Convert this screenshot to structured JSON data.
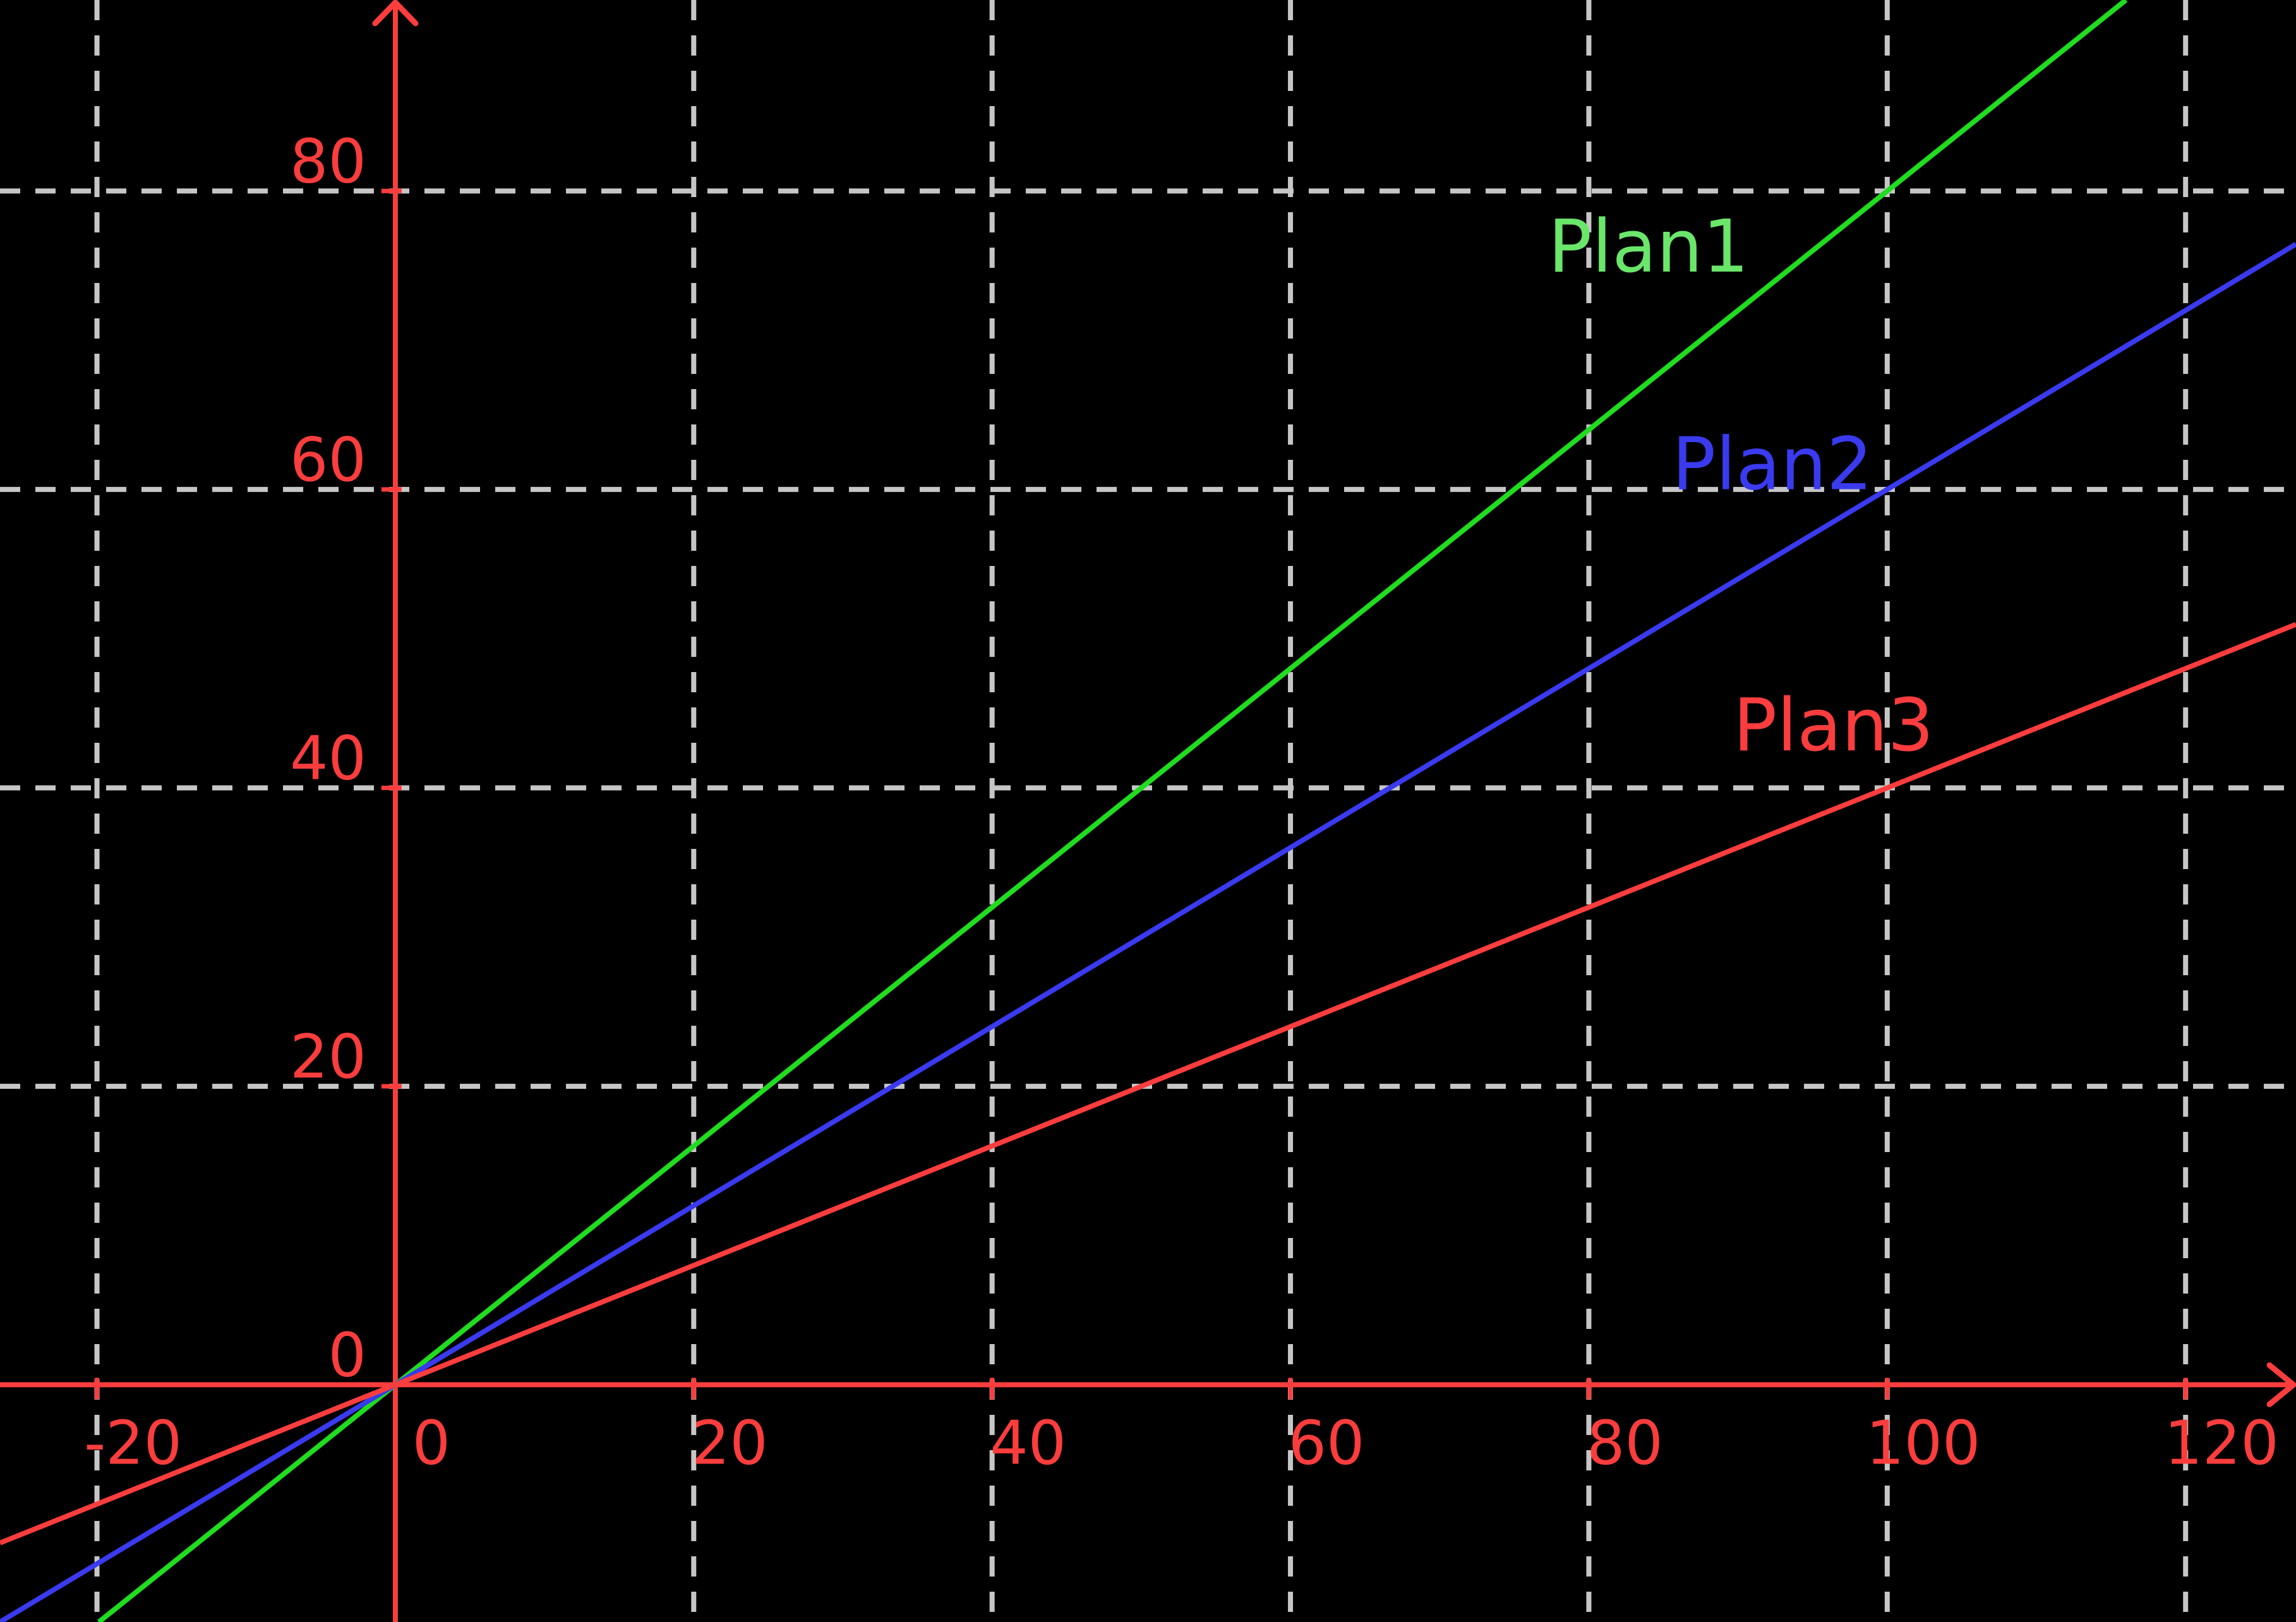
{
  "figure": {
    "description": "Black-background coordinate plane with red arrowed axes, dashed gray gridlines, and three proportional lines through the origin labeled Plan1, Plan2, Plan3"
  },
  "colors": {
    "background": "#000000",
    "axis_red": "#fb3d3d",
    "grid_gray": "#c6c6c6",
    "plan1_line": "#1fdd1f",
    "plan1_label": "#6ae66a",
    "plan2_line": "#3a3aef",
    "plan2_label": "#3a3aef",
    "plan3_line": "#fb3d3d",
    "plan3_label": "#fb3d3d"
  },
  "chart_data": {
    "type": "line",
    "title": "",
    "xlabel": "",
    "ylabel": "",
    "x_range": [
      -26.5,
      127.4
    ],
    "y_range": [
      -15.9,
      92.8
    ],
    "x_ticks": [
      -20,
      0,
      20,
      40,
      60,
      80,
      100,
      120
    ],
    "y_ticks": [
      0,
      20,
      40,
      60,
      80
    ],
    "x_tick_labels": [
      "-20",
      "0",
      "20",
      "40",
      "60",
      "80",
      "100",
      "120"
    ],
    "y_tick_labels": [
      "0",
      "20",
      "40",
      "60",
      "80"
    ],
    "grid_x": [
      -20,
      20,
      40,
      60,
      80,
      100,
      120
    ],
    "grid_y": [
      20,
      40,
      60,
      80
    ],
    "grid_on": true,
    "legend_position": "inline-labels",
    "series": [
      {
        "name": "Plan1",
        "equation": "y = 0.8x",
        "slope": 0.8,
        "intercept": 0,
        "x": [
          -20,
          0,
          20,
          40,
          60,
          80,
          100,
          120
        ],
        "y": [
          -16,
          0,
          16,
          32,
          48,
          64,
          80,
          96
        ],
        "line_color": "#1fdd1f",
        "label_color": "#6ae66a",
        "label_text": "Plan1",
        "label_at": {
          "x": 84.0,
          "y": 76.3
        }
      },
      {
        "name": "Plan2",
        "equation": "y = 0.6x",
        "slope": 0.6,
        "intercept": 0,
        "x": [
          -20,
          0,
          20,
          40,
          60,
          80,
          100,
          120
        ],
        "y": [
          -12,
          0,
          12,
          24,
          36,
          48,
          60,
          72
        ],
        "line_color": "#3a3aef",
        "label_color": "#3a3aef",
        "label_text": "Plan2",
        "label_at": {
          "x": 92.3,
          "y": 61.7
        }
      },
      {
        "name": "Plan3",
        "equation": "y = 0.4x",
        "slope": 0.4,
        "intercept": 0,
        "x": [
          -20,
          0,
          20,
          40,
          60,
          80,
          100,
          120
        ],
        "y": [
          -8,
          0,
          8,
          16,
          24,
          32,
          40,
          48
        ],
        "line_color": "#fb3d3d",
        "label_color": "#fb3d3d",
        "label_text": "Plan3",
        "label_at": {
          "x": 96.4,
          "y": 44.2
        }
      }
    ]
  }
}
